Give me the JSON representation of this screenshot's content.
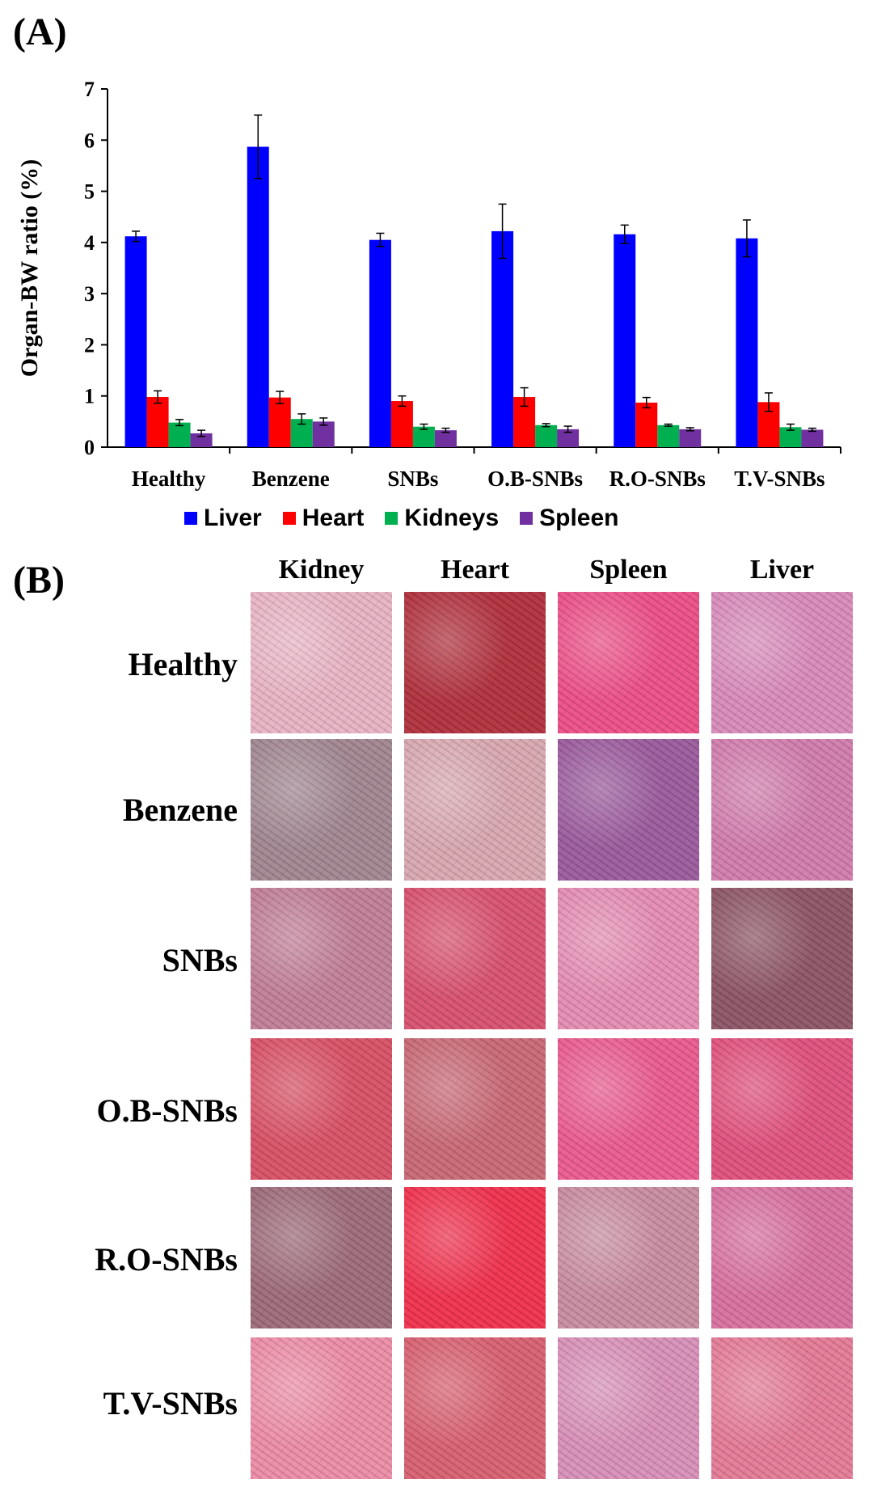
{
  "panel_a_label": "(A)",
  "panel_b_label": "(B)",
  "chart_data": {
    "type": "bar",
    "title": "",
    "xlabel": "",
    "ylabel": "Organ-BW ratio (%)",
    "ylim": [
      0,
      7
    ],
    "yticks": [
      "0",
      "1",
      "2",
      "3",
      "4",
      "5",
      "6",
      "7"
    ],
    "categories": [
      "Healthy",
      "Benzene",
      "SNBs",
      "O.B-SNBs",
      "R.O-SNBs",
      "T.V-SNBs"
    ],
    "series": [
      {
        "name": "Liver",
        "color": "#0000ff",
        "values": [
          4.12,
          5.87,
          4.05,
          4.22,
          4.16,
          4.08
        ],
        "errors": [
          0.1,
          0.62,
          0.13,
          0.53,
          0.18,
          0.36
        ]
      },
      {
        "name": "Heart",
        "color": "#ff0000",
        "values": [
          0.98,
          0.97,
          0.9,
          0.98,
          0.87,
          0.88
        ],
        "errors": [
          0.12,
          0.12,
          0.1,
          0.18,
          0.1,
          0.18
        ]
      },
      {
        "name": "Kidneys",
        "color": "#00b050",
        "values": [
          0.48,
          0.55,
          0.4,
          0.43,
          0.43,
          0.39
        ],
        "errors": [
          0.06,
          0.1,
          0.05,
          0.03,
          0.02,
          0.06
        ]
      },
      {
        "name": "Spleen",
        "color": "#7030a0",
        "values": [
          0.27,
          0.5,
          0.33,
          0.35,
          0.35,
          0.34
        ],
        "errors": [
          0.06,
          0.07,
          0.04,
          0.06,
          0.03,
          0.03
        ]
      }
    ],
    "legend_position": "bottom"
  },
  "histology": {
    "columns": [
      "Kidney",
      "Heart",
      "Spleen",
      "Liver"
    ],
    "rows": [
      "Healthy",
      "Benzene",
      "SNBs",
      "O.B-SNBs",
      "R.O-SNBs",
      "T.V-SNBs"
    ],
    "tile_colors": [
      [
        "#e8b4c4",
        "#b0303c",
        "#ec4e86",
        "#d88aba"
      ],
      [
        "#a08690",
        "#d8a8b0",
        "#9a5a9c",
        "#d07cac"
      ],
      [
        "#c07e96",
        "#d8506e",
        "#e48cb2",
        "#8c5464"
      ],
      [
        "#d85064",
        "#c86874",
        "#ea5a8e",
        "#e0507c"
      ],
      [
        "#9c6a78",
        "#f0304c",
        "#c88ca0",
        "#d8709e"
      ],
      [
        "#ec8ca6",
        "#d86070",
        "#d890b8",
        "#e47a96"
      ]
    ]
  }
}
